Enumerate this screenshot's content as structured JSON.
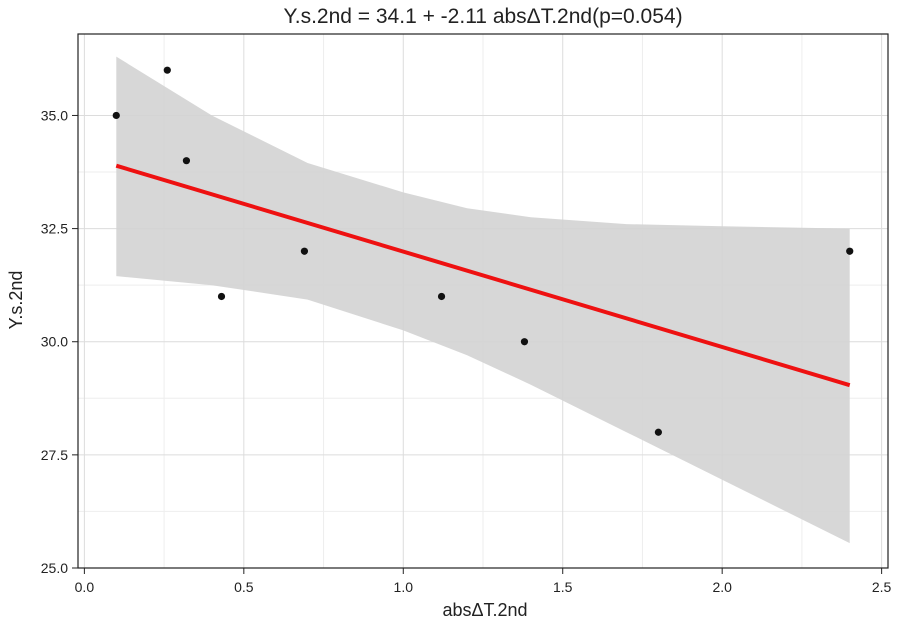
{
  "chart_data": {
    "type": "scatter",
    "title": "Y.s.2nd = 34.1 + -2.11 absΔT.2nd(p=0.054)",
    "xlabel": "absΔT.2nd",
    "ylabel": "Y.s.2nd",
    "xlim": [
      -0.02,
      2.52
    ],
    "ylim": [
      25.0,
      36.8
    ],
    "x_ticks": [
      0.0,
      0.5,
      1.0,
      1.5,
      2.0,
      2.5
    ],
    "x_tick_labels": [
      "0.0",
      "0.5",
      "1.0",
      "1.5",
      "2.0",
      "2.5"
    ],
    "y_ticks": [
      25.0,
      27.5,
      30.0,
      32.5,
      35.0
    ],
    "y_tick_labels": [
      "25.0",
      "27.5",
      "30.0",
      "32.5",
      "35.0"
    ],
    "grid": true,
    "points": [
      {
        "x": 0.1,
        "y": 35.0
      },
      {
        "x": 0.26,
        "y": 36.0
      },
      {
        "x": 0.32,
        "y": 34.0
      },
      {
        "x": 0.43,
        "y": 31.0
      },
      {
        "x": 0.69,
        "y": 32.0
      },
      {
        "x": 1.12,
        "y": 31.0
      },
      {
        "x": 1.38,
        "y": 30.0
      },
      {
        "x": 1.8,
        "y": 28.0
      },
      {
        "x": 2.4,
        "y": 32.0
      }
    ],
    "fit_line": {
      "x": [
        0.1,
        2.4
      ],
      "y": [
        33.89,
        29.04
      ]
    },
    "confidence_band": {
      "x": [
        0.1,
        0.4,
        0.7,
        1.0,
        1.2,
        1.4,
        1.7,
        2.0,
        2.4
      ],
      "lower": [
        31.45,
        31.25,
        30.93,
        30.25,
        29.7,
        29.05,
        28.0,
        26.95,
        25.55
      ],
      "upper": [
        36.3,
        35.0,
        33.95,
        33.3,
        32.95,
        32.75,
        32.6,
        32.55,
        32.5
      ]
    },
    "colors": {
      "points": "#111111",
      "fit_line": "#ee1111",
      "band": "#d3d3d3",
      "grid_major": "#dcdcdc",
      "grid_minor": "#eeeeee",
      "frame": "#222222"
    }
  }
}
